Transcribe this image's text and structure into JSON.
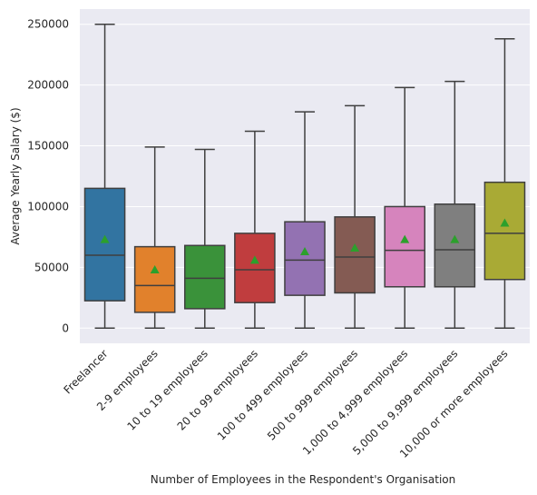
{
  "chart_data": {
    "type": "box",
    "title": "",
    "xlabel": "Number of Employees in the Respondent's Organisation",
    "ylabel": "Average Yearly Salary ($)",
    "ylim": [
      -12500,
      262500
    ],
    "yticks": [
      0,
      50000,
      100000,
      150000,
      200000,
      250000
    ],
    "ytick_labels": [
      "0",
      "50000",
      "100000",
      "150000",
      "200000",
      "250000"
    ],
    "grid": true,
    "background": "#eaeaf2",
    "mean_marker_color": "#2ca02c",
    "categories": [
      "Freelancer",
      "2-9 employees",
      "10 to 19 employees",
      "20 to 99 employees",
      "100 to 499 employees",
      "500 to 999 employees",
      "1,000 to 4,999 employees",
      "5,000 to 9,999 employees",
      "10,000 or more employees"
    ],
    "colors": [
      "#3274a1",
      "#e1812c",
      "#3a923a",
      "#c03d3e",
      "#9372b2",
      "#845b53",
      "#d684bd",
      "#7f7f7f",
      "#a9aa35"
    ],
    "boxes": [
      {
        "whisker_low": 0,
        "q1": 22500,
        "median": 60000,
        "q3": 115000,
        "whisker_high": 250000,
        "mean": 73000
      },
      {
        "whisker_low": 0,
        "q1": 13000,
        "median": 35000,
        "q3": 67000,
        "whisker_high": 149000,
        "mean": 48000
      },
      {
        "whisker_low": 0,
        "q1": 16000,
        "median": 41000,
        "q3": 68000,
        "whisker_high": 147000,
        "mean": null
      },
      {
        "whisker_low": 0,
        "q1": 21000,
        "median": 48000,
        "q3": 78000,
        "whisker_high": 162000,
        "mean": 56000
      },
      {
        "whisker_low": 0,
        "q1": 27000,
        "median": 56000,
        "q3": 87500,
        "whisker_high": 178000,
        "mean": 63000
      },
      {
        "whisker_low": 0,
        "q1": 29000,
        "median": 58500,
        "q3": 91500,
        "whisker_high": 183000,
        "mean": 66000
      },
      {
        "whisker_low": 0,
        "q1": 34000,
        "median": 64000,
        "q3": 100000,
        "whisker_high": 198000,
        "mean": 73000
      },
      {
        "whisker_low": 0,
        "q1": 34000,
        "median": 64500,
        "q3": 102000,
        "whisker_high": 203000,
        "mean": 73000
      },
      {
        "whisker_low": 0,
        "q1": 40000,
        "median": 78000,
        "q3": 120000,
        "whisker_high": 238000,
        "mean": 86500
      }
    ]
  }
}
